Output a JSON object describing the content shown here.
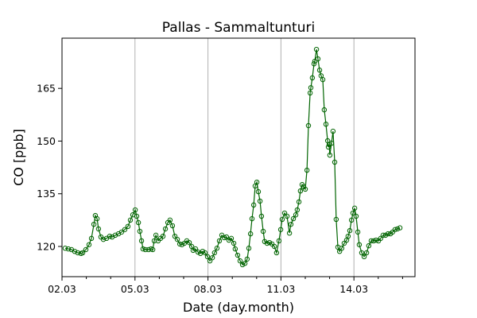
{
  "chart_data": {
    "type": "line",
    "title": "Pallas - Sammaltunturi",
    "xlabel": "Date (day.month)",
    "ylabel": "CO [ppb]",
    "x_unit": "days since 02.03",
    "xlim": [
      0,
      14.51
    ],
    "ylim": [
      111.4,
      179.3
    ],
    "x_ticks": [
      {
        "value": 0,
        "label": "02.03"
      },
      {
        "value": 3,
        "label": "05.03"
      },
      {
        "value": 6,
        "label": "08.03"
      },
      {
        "value": 9,
        "label": "11.03"
      },
      {
        "value": 12,
        "label": "14.03"
      }
    ],
    "x_minor_step": 1,
    "y_ticks": [
      {
        "value": 120,
        "label": "120"
      },
      {
        "value": 135,
        "label": "135"
      },
      {
        "value": 150,
        "label": "150"
      },
      {
        "value": 165,
        "label": "165"
      }
    ],
    "grid": "vertical at major x ticks",
    "color": "#006400",
    "marker": "open-circle",
    "series": [
      {
        "name": "CO",
        "x": [
          0.13,
          0.26,
          0.39,
          0.52,
          0.65,
          0.78,
          0.85,
          0.98,
          1.11,
          1.21,
          1.31,
          1.37,
          1.44,
          1.5,
          1.6,
          1.7,
          1.83,
          1.96,
          2.06,
          2.19,
          2.32,
          2.45,
          2.58,
          2.71,
          2.81,
          2.91,
          3.01,
          3.07,
          3.14,
          3.2,
          3.27,
          3.33,
          3.43,
          3.56,
          3.66,
          3.73,
          3.79,
          3.86,
          3.95,
          4.05,
          4.15,
          4.25,
          4.35,
          4.44,
          4.54,
          4.64,
          4.74,
          4.84,
          4.93,
          5.03,
          5.13,
          5.23,
          5.33,
          5.39,
          5.49,
          5.59,
          5.69,
          5.78,
          5.88,
          5.98,
          6.08,
          6.18,
          6.27,
          6.37,
          6.47,
          6.57,
          6.67,
          6.76,
          6.86,
          6.96,
          7.06,
          7.12,
          7.22,
          7.32,
          7.42,
          7.52,
          7.61,
          7.68,
          7.75,
          7.81,
          7.88,
          7.94,
          8.01,
          8.07,
          8.14,
          8.2,
          8.27,
          8.33,
          8.43,
          8.53,
          8.63,
          8.73,
          8.82,
          8.92,
          8.99,
          9.05,
          9.15,
          9.25,
          9.35,
          9.41,
          9.51,
          9.61,
          9.67,
          9.74,
          9.8,
          9.87,
          9.93,
          10.0,
          10.07,
          10.13,
          10.2,
          10.23,
          10.29,
          10.36,
          10.39,
          10.46,
          10.52,
          10.59,
          10.65,
          10.72,
          10.78,
          10.85,
          10.92,
          10.95,
          10.98,
          11.01,
          11.08,
          11.14,
          11.21,
          11.27,
          11.34,
          11.41,
          11.5,
          11.6,
          11.7,
          11.76,
          11.83,
          11.9,
          11.96,
          12.03,
          12.09,
          12.16,
          12.22,
          12.32,
          12.42,
          12.52,
          12.61,
          12.71,
          12.81,
          12.91,
          13.01,
          13.1,
          13.2,
          13.3,
          13.4,
          13.5,
          13.59,
          13.69,
          13.79,
          13.89
        ],
        "y": [
          119.5,
          119.3,
          119.1,
          118.6,
          118.2,
          118.0,
          118.2,
          119.1,
          120.5,
          122.3,
          126.3,
          128.8,
          127.9,
          125.0,
          122.7,
          122.0,
          122.3,
          122.9,
          122.7,
          123.2,
          123.6,
          124.1,
          124.8,
          125.7,
          127.5,
          129.0,
          130.4,
          128.6,
          126.8,
          124.3,
          121.6,
          119.3,
          119.1,
          119.1,
          119.3,
          119.1,
          121.6,
          123.2,
          121.6,
          122.3,
          122.9,
          125.0,
          126.8,
          127.5,
          125.9,
          122.9,
          122.0,
          120.7,
          120.5,
          120.9,
          121.6,
          121.1,
          120.0,
          118.9,
          119.3,
          118.4,
          118.0,
          118.6,
          118.2,
          117.1,
          115.9,
          116.8,
          118.2,
          119.5,
          121.6,
          123.2,
          122.5,
          122.7,
          121.8,
          122.3,
          120.9,
          119.3,
          117.5,
          115.9,
          114.8,
          115.2,
          116.4,
          119.5,
          123.6,
          127.9,
          131.8,
          137.2,
          138.3,
          135.6,
          132.9,
          128.6,
          124.3,
          121.4,
          120.9,
          121.1,
          120.7,
          120.0,
          118.2,
          121.6,
          124.8,
          127.7,
          129.5,
          128.6,
          123.8,
          126.3,
          127.9,
          129.0,
          130.4,
          132.7,
          135.8,
          137.6,
          137.0,
          136.3,
          141.7,
          154.4,
          163.7,
          165.2,
          168.0,
          172.0,
          172.7,
          176.1,
          173.4,
          170.2,
          168.6,
          167.5,
          158.9,
          154.8,
          150.1,
          148.3,
          149.0,
          146.0,
          149.4,
          152.8,
          144.0,
          127.7,
          119.8,
          118.6,
          119.5,
          120.9,
          121.8,
          122.9,
          124.5,
          127.5,
          129.5,
          130.9,
          128.6,
          124.1,
          120.5,
          118.2,
          117.1,
          118.2,
          120.2,
          121.6,
          121.6,
          121.8,
          121.6,
          122.3,
          123.2,
          123.2,
          123.6,
          123.6,
          124.1,
          124.8,
          125.0,
          125.3
        ]
      }
    ]
  }
}
